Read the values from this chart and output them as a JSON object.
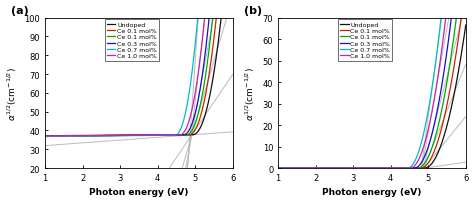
{
  "panel_a": {
    "label": "(a)",
    "xlabel": "Photon energy (eV)",
    "xlim": [
      1,
      6
    ],
    "ylim": [
      20,
      100
    ],
    "yticks": [
      20,
      30,
      40,
      50,
      60,
      70,
      80,
      90,
      100
    ],
    "xticks": [
      1,
      2,
      3,
      4,
      5,
      6
    ]
  },
  "panel_b": {
    "label": "(b)",
    "xlabel": "Photon energy (eV)",
    "xlim": [
      1,
      6
    ],
    "ylim": [
      0,
      70
    ],
    "yticks": [
      0,
      10,
      20,
      30,
      40,
      50,
      60,
      70
    ],
    "xticks": [
      1,
      2,
      3,
      4,
      5,
      6
    ]
  },
  "series": [
    {
      "label": "Undoped",
      "color": "#111111"
    },
    {
      "label": "Ce 0.1 mol%",
      "color": "#cc2200"
    },
    {
      "label": "Ce 0.1 mol%",
      "color": "#00aa00"
    },
    {
      "label": "Ce 0.3 mol%",
      "color": "#1111cc"
    },
    {
      "label": "Ce 0.7 mol%",
      "color": "#00bbcc"
    },
    {
      "label": "Ce 1.0 mol%",
      "color": "#cc22aa"
    }
  ],
  "tangent_color": "#bbbbbb",
  "background": "#ffffff",
  "a_curve_params": [
    {
      "baseline": 37.2,
      "slope_base": 0.4,
      "onset": 4.92,
      "power": 2.2,
      "scale": 110
    },
    {
      "baseline": 37.0,
      "slope_base": 0.5,
      "onset": 4.82,
      "power": 2.2,
      "scale": 120
    },
    {
      "baseline": 37.0,
      "slope_base": 0.5,
      "onset": 4.75,
      "power": 2.2,
      "scale": 130
    },
    {
      "baseline": 37.0,
      "slope_base": 0.6,
      "onset": 4.68,
      "power": 2.2,
      "scale": 140
    },
    {
      "baseline": 36.8,
      "slope_base": 0.6,
      "onset": 4.45,
      "power": 2.2,
      "scale": 180
    },
    {
      "baseline": 37.0,
      "slope_base": 0.55,
      "onset": 4.58,
      "power": 2.2,
      "scale": 150
    }
  ],
  "b_curve_params": [
    {
      "onset": 4.9,
      "power": 2.0,
      "scale": 55
    },
    {
      "onset": 4.8,
      "power": 2.0,
      "scale": 60
    },
    {
      "onset": 4.72,
      "power": 2.0,
      "scale": 66
    },
    {
      "onset": 4.63,
      "power": 2.0,
      "scale": 72
    },
    {
      "onset": 4.45,
      "power": 2.0,
      "scale": 88
    },
    {
      "onset": 4.52,
      "power": 2.0,
      "scale": 78
    }
  ],
  "a_tangent_x": [
    4.92,
    4.98,
    5.05,
    5.1,
    5.2,
    5.15
  ],
  "b_tangent_x": [
    4.92,
    4.98,
    5.05,
    5.1,
    5.18,
    5.14
  ]
}
